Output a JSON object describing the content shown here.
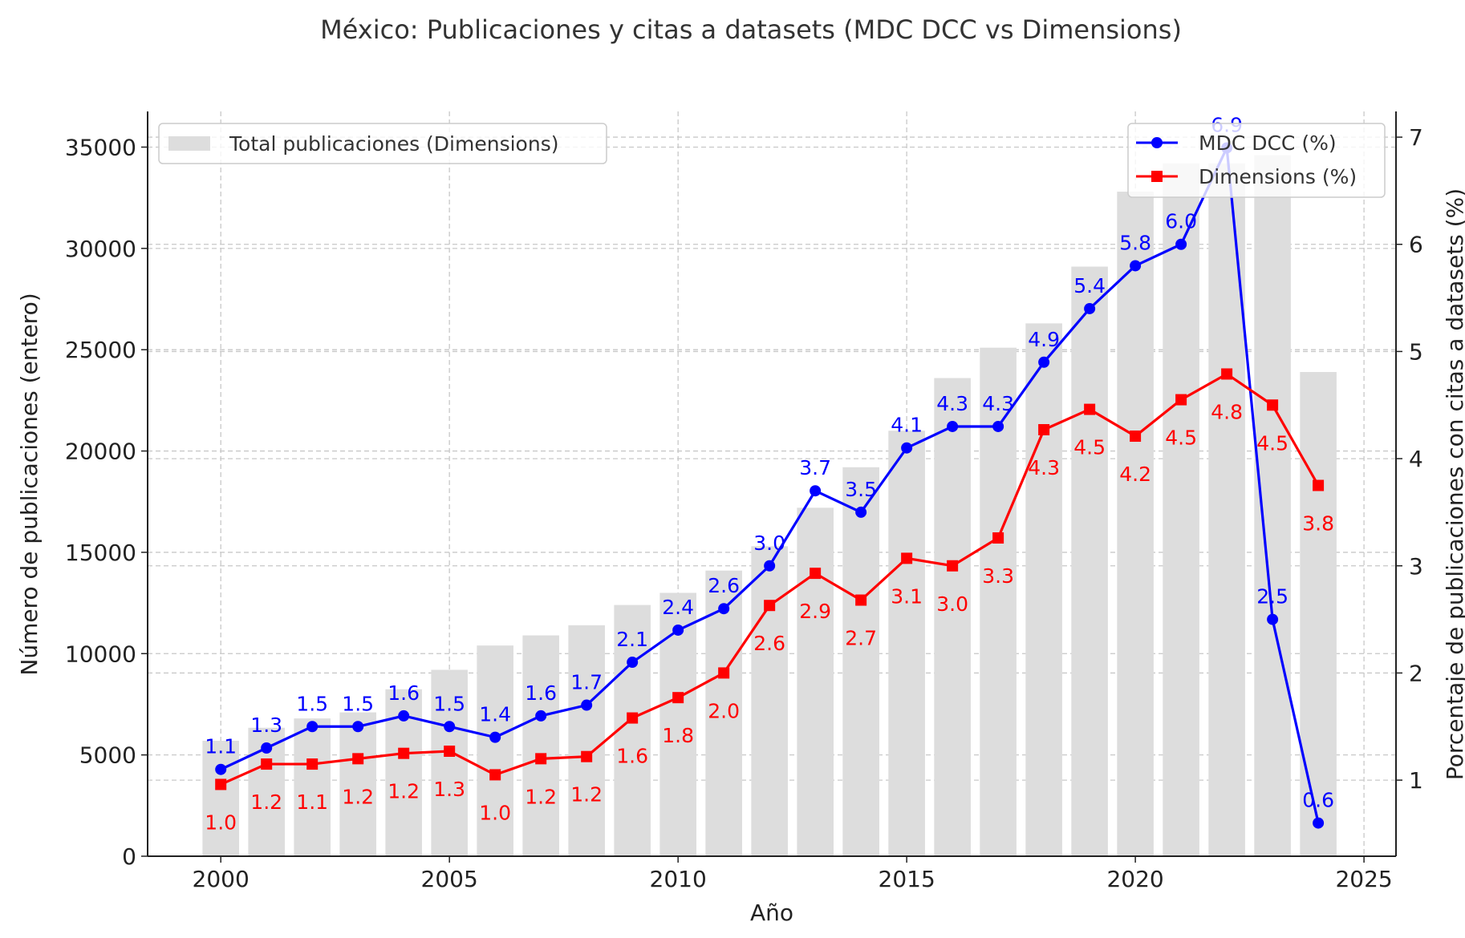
{
  "chart_data": {
    "type": "bar+line",
    "title": "México: Publicaciones y citas a datasets (MDC DCC vs Dimensions)",
    "xlabel": "Año",
    "ylabel_left": "Número de publicaciones (entero)",
    "ylabel_right": "Porcentaje de publicaciones con citas a datasets (%)",
    "xlim": [
      1998.4,
      2025.7
    ],
    "ylim_left": [
      0,
      36760
    ],
    "ylim_right": [
      0.29,
      7.24
    ],
    "xticks": [
      2000,
      2005,
      2010,
      2015,
      2020,
      2025
    ],
    "yticks_left": [
      0,
      5000,
      10000,
      15000,
      20000,
      25000,
      30000,
      35000
    ],
    "yticks_right": [
      1,
      2,
      3,
      4,
      5,
      6,
      7
    ],
    "grid": true,
    "x": [
      2000,
      2001,
      2002,
      2003,
      2004,
      2005,
      2006,
      2007,
      2008,
      2009,
      2010,
      2011,
      2012,
      2013,
      2014,
      2015,
      2016,
      2017,
      2018,
      2019,
      2020,
      2021,
      2022,
      2023,
      2024
    ],
    "bars": {
      "name": "Total publicaciones (Dimensions)",
      "color": "#dddddd",
      "values": [
        5700,
        6340,
        6800,
        7100,
        8240,
        9200,
        10400,
        10900,
        11400,
        12400,
        13000,
        14100,
        15300,
        17200,
        19200,
        21000,
        23600,
        25100,
        26300,
        29100,
        32800,
        34200,
        34200,
        34600,
        23900
      ]
    },
    "series": [
      {
        "name": "MDC DCC (%)",
        "color": "#0000ff",
        "marker": "circle",
        "values": [
          1.1,
          1.3,
          1.5,
          1.5,
          1.6,
          1.5,
          1.4,
          1.6,
          1.7,
          2.1,
          2.4,
          2.6,
          3.0,
          3.7,
          3.5,
          4.1,
          4.3,
          4.3,
          4.9,
          5.4,
          5.8,
          6.0,
          6.9,
          2.5,
          0.6
        ],
        "labels": [
          "1.1",
          "1.3",
          "1.5",
          "1.5",
          "1.6",
          "1.5",
          "1.4",
          "1.6",
          "1.7",
          "2.1",
          "2.4",
          "2.6",
          "3.0",
          "3.7",
          "3.5",
          "4.1",
          "4.3",
          "4.3",
          "4.9",
          "5.4",
          "5.8",
          "6.0",
          "6.9",
          "2.5",
          "0.6"
        ]
      },
      {
        "name": "Dimensions (%)",
        "color": "#ff0000",
        "marker": "square",
        "values": [
          0.96,
          1.15,
          1.15,
          1.2,
          1.25,
          1.27,
          1.05,
          1.2,
          1.22,
          1.58,
          1.77,
          2.0,
          2.63,
          2.93,
          2.68,
          3.07,
          3.0,
          3.26,
          4.27,
          4.46,
          4.21,
          4.55,
          4.79,
          4.5,
          3.75
        ],
        "labels": [
          "1.0",
          "1.2",
          "1.1",
          "1.2",
          "1.2",
          "1.3",
          "1.0",
          "1.2",
          "1.2",
          "1.6",
          "1.8",
          "2.0",
          "2.6",
          "2.9",
          "2.7",
          "3.1",
          "3.0",
          "3.3",
          "4.3",
          "4.5",
          "4.2",
          "4.5",
          "4.8",
          "4.5",
          "3.8"
        ]
      }
    ],
    "legend_left_placement": "top-left",
    "legend_right_placement": "top-right"
  }
}
